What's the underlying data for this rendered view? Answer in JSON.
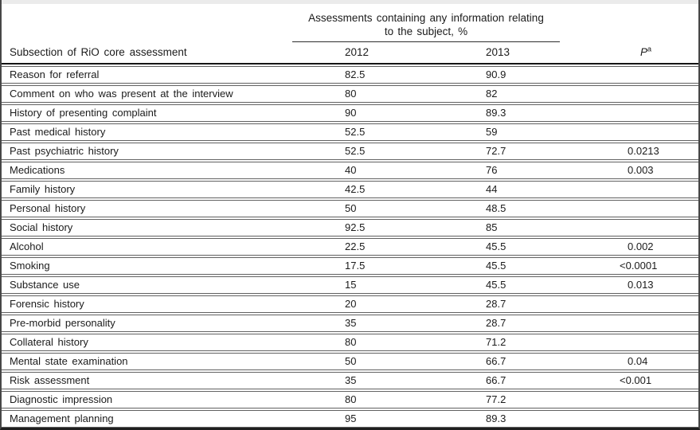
{
  "table": {
    "span_header": {
      "line1": "Assessments containing any information relating",
      "line2": "to the subject, %"
    },
    "columns": {
      "subsection": "Subsection of RiO core assessment",
      "y2012": "2012",
      "y2013": "2013",
      "p_label": "P",
      "p_sup": "a"
    },
    "rows": [
      {
        "label": "Reason for referral",
        "y2012": "82.5",
        "y2013": "90.9",
        "p": ""
      },
      {
        "label": "Comment on who was present at the interview",
        "y2012": "80",
        "y2013": "82",
        "p": ""
      },
      {
        "label": "History of presenting complaint",
        "y2012": "90",
        "y2013": "89.3",
        "p": ""
      },
      {
        "label": "Past medical history",
        "y2012": "52.5",
        "y2013": "59",
        "p": ""
      },
      {
        "label": "Past psychiatric history",
        "y2012": "52.5",
        "y2013": "72.7",
        "p": "0.0213"
      },
      {
        "label": "Medications",
        "y2012": "40",
        "y2013": "76",
        "p": "0.003"
      },
      {
        "label": "Family history",
        "y2012": "42.5",
        "y2013": "44",
        "p": ""
      },
      {
        "label": "Personal history",
        "y2012": "50",
        "y2013": "48.5",
        "p": ""
      },
      {
        "label": "Social history",
        "y2012": "92.5",
        "y2013": "85",
        "p": ""
      },
      {
        "label": "Alcohol",
        "y2012": "22.5",
        "y2013": "45.5",
        "p": "0.002"
      },
      {
        "label": "Smoking",
        "y2012": "17.5",
        "y2013": "45.5",
        "p": "<0.0001"
      },
      {
        "label": "Substance use",
        "y2012": "15",
        "y2013": "45.5",
        "p": "0.013"
      },
      {
        "label": "Forensic history",
        "y2012": "20",
        "y2013": "28.7",
        "p": ""
      },
      {
        "label": "Pre-morbid personality",
        "y2012": "35",
        "y2013": "28.7",
        "p": ""
      },
      {
        "label": "Collateral history",
        "y2012": "80",
        "y2013": "71.2",
        "p": ""
      },
      {
        "label": "Mental state examination",
        "y2012": "50",
        "y2013": "66.7",
        "p": "0.04"
      },
      {
        "label": "Risk assessment",
        "y2012": "35",
        "y2013": "66.7",
        "p": "<0.001"
      },
      {
        "label": "Diagnostic impression",
        "y2012": "80",
        "y2013": "77.2",
        "p": ""
      },
      {
        "label": "Management planning",
        "y2012": "95",
        "y2013": "89.3",
        "p": ""
      }
    ]
  },
  "colors": {
    "outer_border": "#474747",
    "bottom_border": "#1f1f1f",
    "header_rule": "#161616",
    "row_line": "#616161",
    "top_strip": "#ebebeb",
    "text": "#1b1b1b",
    "background": "#ffffff"
  }
}
